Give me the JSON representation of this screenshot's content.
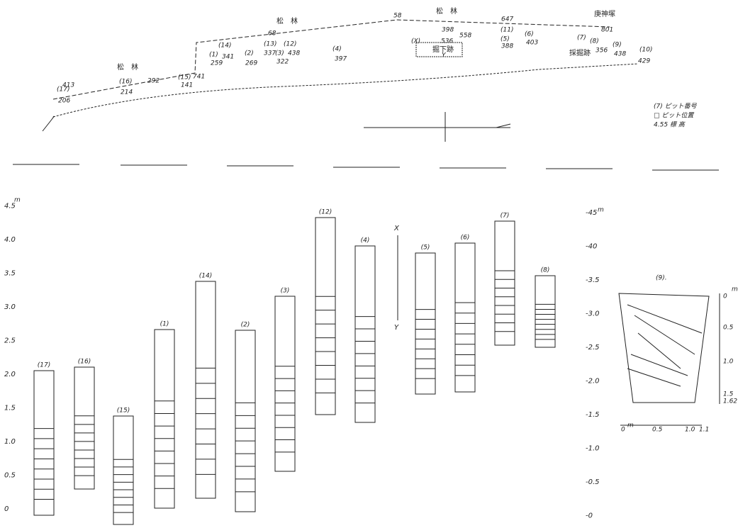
{
  "plan": {
    "labels": [
      "松　林",
      "松　林",
      "松　林",
      "庚神塚",
      "58",
      "647",
      "68",
      "801",
      "413",
      "(16)",
      "214",
      "292",
      "(15)",
      "141",
      "741",
      "(17)",
      "206",
      "(1)",
      "259",
      "(14)",
      "341",
      "(2)",
      "269",
      "(13)",
      "337",
      "(3)",
      "322",
      "(12)",
      "438",
      "(4)",
      "397",
      "(X)",
      "398",
      "536",
      "558",
      "掘下跡",
      "Y",
      "(11)",
      "(5)",
      "388",
      "(6)",
      "403",
      "(7)",
      "(8)",
      "356",
      "採掘跡",
      "(9)",
      "438",
      "(10)",
      "429"
    ]
  },
  "legend": [
    "(7) ピット番号",
    "□ ピット位置",
    "4.55 標 高"
  ],
  "left_axis": {
    "unit": "m",
    "ticks": [
      "4.5",
      "4.0",
      "3.5",
      "3.0",
      "2.5",
      "2.0",
      "1.5",
      "1.0",
      "0.5",
      "0"
    ]
  },
  "right_axis": {
    "unit": "m",
    "ticks": [
      "-45",
      "-40",
      "-3.5",
      "-3.0",
      "-2.5",
      "-2.0",
      "-1.5",
      "-1.0",
      "-0.5",
      "-0"
    ]
  },
  "columns": [
    "(17)",
    "(16)",
    "(15)",
    "(1)",
    "(14)",
    "(2)",
    "(3)",
    "(12)",
    "(4)",
    "(5)",
    "(6)",
    "(7)",
    "(8)"
  ],
  "section_markers": [
    "X",
    "Y"
  ],
  "pit9": {
    "label": "(9).",
    "depth_ticks": [
      "0",
      "0.5",
      "1.0",
      "1.5",
      "1.62"
    ],
    "depth_unit": "m",
    "width_ticks": [
      "0",
      "0.5",
      "1.0",
      "1.1"
    ],
    "width_unit": "m"
  }
}
